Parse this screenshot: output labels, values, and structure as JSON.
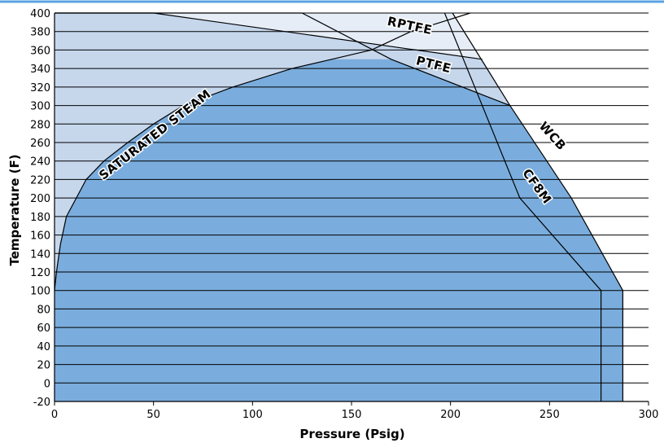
{
  "chart_data": {
    "type": "area",
    "title": "",
    "xlabel": "Pressure (Psig)",
    "ylabel": "Temperature (F)",
    "xlim": [
      0,
      300
    ],
    "ylim": [
      -20,
      400
    ],
    "x_ticks": [
      0,
      50,
      100,
      150,
      200,
      250,
      300
    ],
    "y_ticks": [
      -20,
      0,
      20,
      40,
      60,
      80,
      100,
      120,
      140,
      160,
      180,
      200,
      220,
      240,
      260,
      280,
      300,
      320,
      340,
      360,
      380,
      400
    ],
    "grid": "horizontal",
    "colors": {
      "valve_rating_fill": "#7aaddd",
      "ptfe_region_fill": "#c6d7ec",
      "rptfe_region_fill": "#e6edf7",
      "top_border": "#5aa3e2",
      "line": "#000000",
      "grid": "#000000"
    },
    "series": [
      {
        "name": "SATURATED STEAM",
        "x": [
          0,
          1,
          3,
          6,
          11,
          16,
          25,
          37,
          50,
          65,
          90,
          120,
          140,
          160,
          180,
          195,
          210
        ],
        "y": [
          100,
          120,
          150,
          180,
          200,
          220,
          240,
          260,
          280,
          300,
          320,
          340,
          350,
          360,
          380,
          390,
          400
        ]
      },
      {
        "name": "PTFE",
        "x": [
          0,
          125,
          170,
          230
        ],
        "y": [
          400,
          400,
          350,
          300
        ]
      },
      {
        "name": "RPTFE",
        "x": [
          0,
          50,
          216
        ],
        "y": [
          400,
          400,
          350
        ]
      },
      {
        "name": "WCB",
        "x": [
          201,
          230,
          261,
          287,
          287
        ],
        "y": [
          400,
          300,
          200,
          100,
          -20
        ]
      },
      {
        "name": "CF8M",
        "x": [
          197,
          235,
          276,
          276
        ],
        "y": [
          400,
          200,
          100,
          -20
        ]
      }
    ]
  }
}
